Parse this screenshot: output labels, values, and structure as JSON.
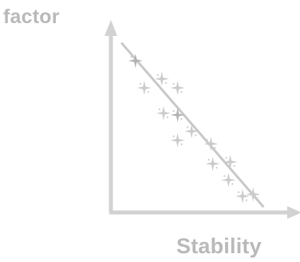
{
  "labels": {
    "y_axis": "factor",
    "x_axis": "Stability"
  },
  "colors": {
    "axis": "#d2d2d2",
    "trend_line": "#c8c8c8",
    "marker_dark": "#b2b2b2",
    "marker_light": "#cbcbcb",
    "label_text": "#b9b9b9"
  },
  "icons": {
    "marker": "four-point-sparkle-icon",
    "axis_arrow": "arrowhead-icon"
  },
  "chart_data": {
    "type": "scatter",
    "xlim": [
      0,
      10
    ],
    "ylim": [
      0,
      10
    ],
    "grid": false,
    "legend": "none",
    "xlabel": "Stability",
    "ylabel": "factor",
    "trend_line": [
      [
        0.6,
        9.4
      ],
      [
        8.7,
        0.3
      ]
    ],
    "points": [
      {
        "x": 1.4,
        "y": 8.4,
        "shade": "dark"
      },
      {
        "x": 1.9,
        "y": 6.9,
        "shade": "light"
      },
      {
        "x": 2.9,
        "y": 7.4,
        "shade": "light"
      },
      {
        "x": 3.8,
        "y": 6.9,
        "shade": "light"
      },
      {
        "x": 3.0,
        "y": 5.5,
        "shade": "light"
      },
      {
        "x": 3.8,
        "y": 5.4,
        "shade": "dark"
      },
      {
        "x": 4.6,
        "y": 4.5,
        "shade": "light"
      },
      {
        "x": 3.8,
        "y": 4.0,
        "shade": "light"
      },
      {
        "x": 5.7,
        "y": 3.8,
        "shade": "light"
      },
      {
        "x": 5.8,
        "y": 2.7,
        "shade": "light"
      },
      {
        "x": 6.8,
        "y": 2.8,
        "shade": "light"
      },
      {
        "x": 6.7,
        "y": 1.8,
        "shade": "light"
      },
      {
        "x": 8.1,
        "y": 1.0,
        "shade": "light"
      },
      {
        "x": 7.5,
        "y": 0.9,
        "shade": "light"
      }
    ]
  }
}
